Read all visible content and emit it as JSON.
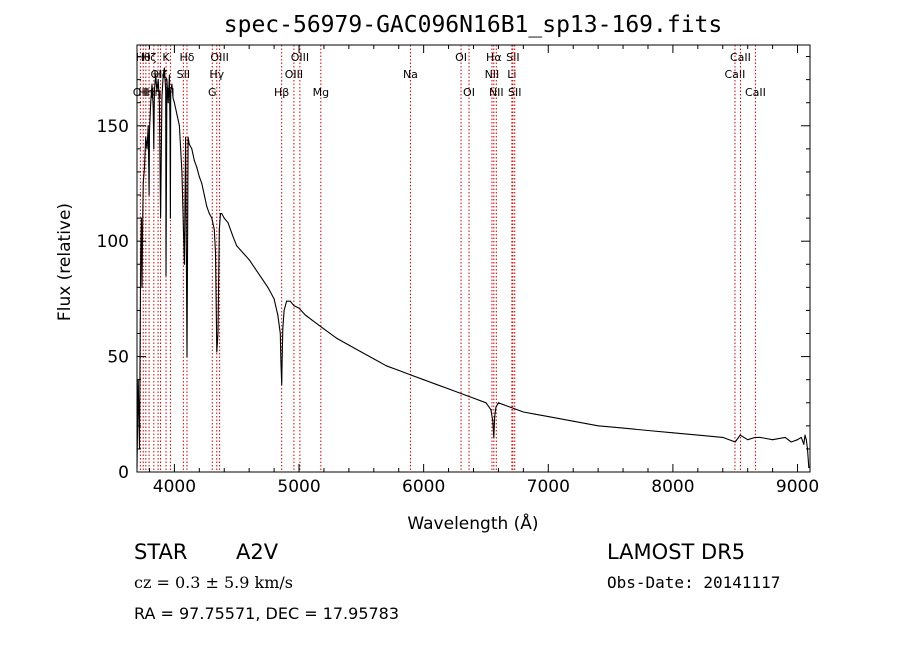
{
  "chart_data": {
    "type": "line",
    "title": "spec-56979-GAC096N16B1_sp13-169.fits",
    "xlabel": "Wavelength (Å)",
    "ylabel": "Flux (relative)",
    "xlim": [
      3700,
      9100
    ],
    "ylim": [
      0,
      185
    ],
    "xticks": [
      4000,
      5000,
      6000,
      7000,
      8000,
      9000
    ],
    "yticks": [
      0,
      50,
      100,
      150
    ],
    "grid": false,
    "series": [
      {
        "x": [
          3700,
          3710,
          3720,
          3730,
          3735,
          3740,
          3745,
          3750,
          3760,
          3770,
          3780,
          3790,
          3797,
          3800,
          3810,
          3820,
          3830,
          3835,
          3840,
          3850,
          3860,
          3870,
          3880,
          3889,
          3900,
          3910,
          3920,
          3930,
          3933,
          3940,
          3950,
          3960,
          3965,
          3968,
          3970,
          3980,
          3990,
          4000,
          4020,
          4040,
          4060,
          4080,
          4090,
          4101,
          4110,
          4120,
          4140,
          4160,
          4180,
          4200,
          4220,
          4240,
          4260,
          4280,
          4300,
          4320,
          4330,
          4340,
          4350,
          4360,
          4370,
          4380,
          4400,
          4430,
          4470,
          4500,
          4550,
          4600,
          4650,
          4700,
          4750,
          4800,
          4830,
          4850,
          4855,
          4861,
          4866,
          4870,
          4880,
          4900,
          4930,
          4960,
          5000,
          5050,
          5100,
          5200,
          5300,
          5400,
          5500,
          5600,
          5700,
          5800,
          5900,
          6000,
          6100,
          6200,
          6300,
          6400,
          6500,
          6540,
          6555,
          6563,
          6570,
          6580,
          6600,
          6700,
          6800,
          6900,
          7000,
          7200,
          7400,
          7600,
          7800,
          8000,
          8200,
          8400,
          8500,
          8540,
          8600,
          8660,
          8700,
          8800,
          8900,
          8950,
          9000,
          9030,
          9050,
          9060,
          9070,
          9080,
          9090,
          9100
        ],
        "values": [
          2,
          40,
          10,
          95,
          110,
          80,
          105,
          125,
          132,
          145,
          140,
          150,
          120,
          148,
          160,
          168,
          158,
          140,
          165,
          172,
          165,
          170,
          160,
          110,
          162,
          172,
          175,
          165,
          85,
          170,
          160,
          172,
          150,
          110,
          165,
          168,
          162,
          160,
          155,
          150,
          130,
          90,
          145,
          50,
          145,
          142,
          140,
          135,
          132,
          128,
          125,
          120,
          115,
          112,
          110,
          105,
          95,
          52,
          60,
          105,
          112,
          112,
          110,
          108,
          102,
          98,
          95,
          92,
          88,
          84,
          80,
          75,
          68,
          60,
          48,
          38,
          52,
          62,
          70,
          74,
          74,
          72,
          71,
          68,
          66,
          62,
          58,
          55,
          52,
          49,
          46,
          44,
          42,
          40,
          38,
          36,
          34,
          32,
          30,
          27,
          22,
          15,
          24,
          28,
          30,
          28,
          26,
          25,
          24,
          22,
          20,
          19,
          18,
          17,
          16,
          15,
          13,
          16,
          14,
          15,
          15,
          14,
          15,
          13,
          14,
          15,
          12,
          16,
          14,
          10,
          2,
          2
        ]
      }
    ],
    "lines": [
      {
        "x": 3727,
        "label": "OII",
        "row": 2
      },
      {
        "x": 3750,
        "label": "Hθ",
        "row": 0
      },
      {
        "x": 3771,
        "label": "Hη",
        "row": 2
      },
      {
        "x": 3797,
        "label": "Hζ",
        "row": 0
      },
      {
        "x": 3835,
        "label": "Hη",
        "row": 2
      },
      {
        "x": 3869,
        "label": "OII",
        "row": 1
      },
      {
        "x": 3889,
        "label": "Hζ",
        "row": 1
      },
      {
        "x": 3933,
        "label": "K",
        "row": 0
      },
      {
        "x": 3968,
        "label": "H",
        "row": 2
      },
      {
        "x": 4072,
        "label": "SII",
        "row": 1
      },
      {
        "x": 4101,
        "label": "Hδ",
        "row": 0
      },
      {
        "x": 4304,
        "label": "G",
        "row": 2
      },
      {
        "x": 4340,
        "label": "Hγ",
        "row": 1
      },
      {
        "x": 4363,
        "label": "OIII",
        "row": 0
      },
      {
        "x": 4861,
        "label": "Hβ",
        "row": 2
      },
      {
        "x": 4959,
        "label": "OIII",
        "row": 1
      },
      {
        "x": 5007,
        "label": "OIII",
        "row": 0
      },
      {
        "x": 5175,
        "label": "Mg",
        "row": 2
      },
      {
        "x": 5894,
        "label": "Na",
        "row": 1
      },
      {
        "x": 6300,
        "label": "OI",
        "row": 0
      },
      {
        "x": 6364,
        "label": "OI",
        "row": 2
      },
      {
        "x": 6548,
        "label": "NII",
        "row": 1
      },
      {
        "x": 6563,
        "label": "Hα",
        "row": 0
      },
      {
        "x": 6583,
        "label": "NII",
        "row": 2
      },
      {
        "x": 6708,
        "label": "Li",
        "row": 1
      },
      {
        "x": 6716,
        "label": "SII",
        "row": 0
      },
      {
        "x": 6731,
        "label": "SII",
        "row": 2
      },
      {
        "x": 8498,
        "label": "CaII",
        "row": 1
      },
      {
        "x": 8542,
        "label": "CaII",
        "row": 0
      },
      {
        "x": 8662,
        "label": "CaII",
        "row": 2
      }
    ],
    "line_color": "#cc0000"
  },
  "info": {
    "object_class": "STAR",
    "subclass": "A2V",
    "survey": "LAMOST DR5",
    "cz": "cz = 0.3 ± 5.9 km/s",
    "obs_date": "Obs-Date: 20141117",
    "coords": "RA =  97.75571, DEC =  17.95783"
  }
}
